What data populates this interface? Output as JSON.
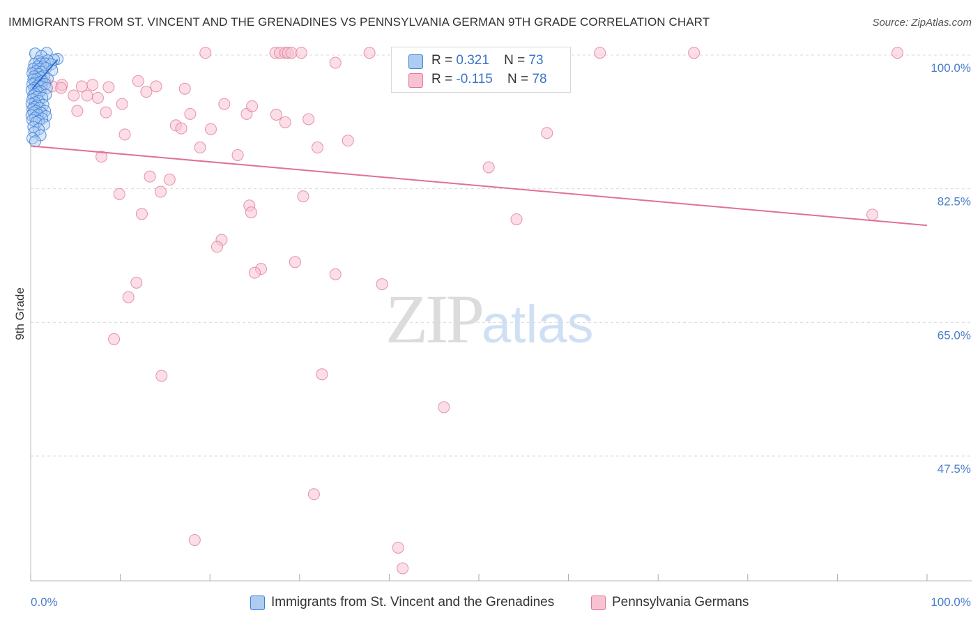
{
  "header": {
    "title": "IMMIGRANTS FROM ST. VINCENT AND THE GRENADINES VS PENNSYLVANIA GERMAN 9TH GRADE CORRELATION CHART",
    "source": "Source: ZipAtlas.com"
  },
  "watermark": {
    "zip": "ZIP",
    "atlas": "atlas"
  },
  "legend": {
    "r_label": "R =",
    "n_label": "N =",
    "series": [
      {
        "name": "Immigrants from St. Vincent and the Grenadines",
        "r": "0.321",
        "n": "73",
        "fill": "#aecbf2",
        "stroke": "#3d7fd6"
      },
      {
        "name": "Pennsylvania Germans",
        "r": "-0.115",
        "n": "78",
        "fill": "#f8c2d2",
        "stroke": "#e07898"
      }
    ]
  },
  "colors": {
    "blue_line": "#2f6fd0",
    "pink_line": "#e0709a",
    "tick_text": "#4a7fc8",
    "grid": "#d9d9d9"
  },
  "chart_data": {
    "type": "scatter",
    "title": "IMMIGRANTS FROM ST. VINCENT AND THE GRENADINES VS PENNSYLVANIA GERMAN 9TH GRADE CORRELATION CHART",
    "xlabel": "",
    "ylabel": "9th Grade",
    "x_tick_labels": [
      "0.0%",
      "100.0%"
    ],
    "y_tick_labels": [
      "100.0%",
      "82.5%",
      "65.0%",
      "47.5%"
    ],
    "y_ticks": [
      100.0,
      82.5,
      65.0,
      47.5
    ],
    "xlim": [
      0,
      100
    ],
    "ylim": [
      31.5,
      102.5
    ],
    "grid": true,
    "legend_position": "top-center",
    "series": [
      {
        "name": "Immigrants from St. Vincent and the Grenadines",
        "r": 0.321,
        "n": 73,
        "trend": {
          "x": [
            0.2,
            3.0
          ],
          "y": [
            95.6,
            99.4
          ]
        },
        "points": [
          [
            0.5,
            100.2
          ],
          [
            1.8,
            100.3
          ],
          [
            1.2,
            99.9
          ],
          [
            3.0,
            99.5
          ],
          [
            2.6,
            99.4
          ],
          [
            0.9,
            99.2
          ],
          [
            1.9,
            99.3
          ],
          [
            1.1,
            98.9
          ],
          [
            1.6,
            98.9
          ],
          [
            0.4,
            98.8
          ],
          [
            2.3,
            98.8
          ],
          [
            0.8,
            98.5
          ],
          [
            1.4,
            98.5
          ],
          [
            0.3,
            98.2
          ],
          [
            1.0,
            98.2
          ],
          [
            1.7,
            98.3
          ],
          [
            2.4,
            98.0
          ],
          [
            0.6,
            97.9
          ],
          [
            1.2,
            97.8
          ],
          [
            0.2,
            97.6
          ],
          [
            0.9,
            97.5
          ],
          [
            1.5,
            97.3
          ],
          [
            0.4,
            97.2
          ],
          [
            1.1,
            97.1
          ],
          [
            0.7,
            96.9
          ],
          [
            1.9,
            96.9
          ],
          [
            0.3,
            96.8
          ],
          [
            1.3,
            96.6
          ],
          [
            0.5,
            96.4
          ],
          [
            1.0,
            96.4
          ],
          [
            0.2,
            96.2
          ],
          [
            1.6,
            96.2
          ],
          [
            0.8,
            96.0
          ],
          [
            1.2,
            95.9
          ],
          [
            0.4,
            95.7
          ],
          [
            1.8,
            95.7
          ],
          [
            0.6,
            95.5
          ],
          [
            0.1,
            95.4
          ],
          [
            1.1,
            95.3
          ],
          [
            0.9,
            95.1
          ],
          [
            0.5,
            94.9
          ],
          [
            1.7,
            94.8
          ],
          [
            0.3,
            94.7
          ],
          [
            0.7,
            94.5
          ],
          [
            1.3,
            94.4
          ],
          [
            0.2,
            94.2
          ],
          [
            0.9,
            94.0
          ],
          [
            0.5,
            93.8
          ],
          [
            0.1,
            93.6
          ],
          [
            1.4,
            93.5
          ],
          [
            0.7,
            93.4
          ],
          [
            0.4,
            93.2
          ],
          [
            1.0,
            93.1
          ],
          [
            0.2,
            92.9
          ],
          [
            0.6,
            92.7
          ],
          [
            1.6,
            92.7
          ],
          [
            0.3,
            92.5
          ],
          [
            1.2,
            92.4
          ],
          [
            0.8,
            92.2
          ],
          [
            0.1,
            92.1
          ],
          [
            1.7,
            92.0
          ],
          [
            0.5,
            91.8
          ],
          [
            1.3,
            91.7
          ],
          [
            0.2,
            91.5
          ],
          [
            0.9,
            91.4
          ],
          [
            0.6,
            91.2
          ],
          [
            1.5,
            90.9
          ],
          [
            0.3,
            90.6
          ],
          [
            0.9,
            90.3
          ],
          [
            0.4,
            89.9
          ],
          [
            1.1,
            89.5
          ],
          [
            0.2,
            89.1
          ],
          [
            0.5,
            88.7
          ]
        ]
      },
      {
        "name": "Pennsylvania Germans",
        "r": -0.115,
        "n": 78,
        "trend": {
          "x": [
            0,
            100
          ],
          "y": [
            88.1,
            77.7
          ]
        },
        "points": [
          [
            19.5,
            100.3
          ],
          [
            27.3,
            100.3
          ],
          [
            27.8,
            100.3
          ],
          [
            28.4,
            100.3
          ],
          [
            28.7,
            100.3
          ],
          [
            29.1,
            100.3
          ],
          [
            30.2,
            100.3
          ],
          [
            37.8,
            100.3
          ],
          [
            48.1,
            100.3
          ],
          [
            58.0,
            100.3
          ],
          [
            63.5,
            100.3
          ],
          [
            74.0,
            100.3
          ],
          [
            96.7,
            100.3
          ],
          [
            34.0,
            99.0
          ],
          [
            1.0,
            96.8
          ],
          [
            1.6,
            96.6
          ],
          [
            12.0,
            96.6
          ],
          [
            1.3,
            96.3
          ],
          [
            3.5,
            96.1
          ],
          [
            6.9,
            96.1
          ],
          [
            2.4,
            95.9
          ],
          [
            5.7,
            95.9
          ],
          [
            14.0,
            95.9
          ],
          [
            8.7,
            95.8
          ],
          [
            3.4,
            95.7
          ],
          [
            17.2,
            95.6
          ],
          [
            12.9,
            95.2
          ],
          [
            4.8,
            94.7
          ],
          [
            6.3,
            94.7
          ],
          [
            7.5,
            94.4
          ],
          [
            21.6,
            93.6
          ],
          [
            10.2,
            93.6
          ],
          [
            5.2,
            92.7
          ],
          [
            8.4,
            92.5
          ],
          [
            17.8,
            92.3
          ],
          [
            24.1,
            92.3
          ],
          [
            24.7,
            93.3
          ],
          [
            27.4,
            92.2
          ],
          [
            31.0,
            91.6
          ],
          [
            28.4,
            91.2
          ],
          [
            16.2,
            90.8
          ],
          [
            16.8,
            90.4
          ],
          [
            20.1,
            90.3
          ],
          [
            10.5,
            89.6
          ],
          [
            35.4,
            88.8
          ],
          [
            18.9,
            87.9
          ],
          [
            32.0,
            87.9
          ],
          [
            23.1,
            86.9
          ],
          [
            7.9,
            86.7
          ],
          [
            13.3,
            84.1
          ],
          [
            15.5,
            83.7
          ],
          [
            14.5,
            82.1
          ],
          [
            9.9,
            81.8
          ],
          [
            30.4,
            81.5
          ],
          [
            24.4,
            80.3
          ],
          [
            24.6,
            79.4
          ],
          [
            12.4,
            79.2
          ],
          [
            93.9,
            79.1
          ],
          [
            54.2,
            78.5
          ],
          [
            21.3,
            75.8
          ],
          [
            20.8,
            74.9
          ],
          [
            29.5,
            72.9
          ],
          [
            25.7,
            72.0
          ],
          [
            25.0,
            71.5
          ],
          [
            34.0,
            71.3
          ],
          [
            39.2,
            70.0
          ],
          [
            11.8,
            70.2
          ],
          [
            10.9,
            68.3
          ],
          [
            9.3,
            62.8
          ],
          [
            14.6,
            58.0
          ],
          [
            32.5,
            58.2
          ],
          [
            46.1,
            53.9
          ],
          [
            31.6,
            42.5
          ],
          [
            18.3,
            36.5
          ],
          [
            41.0,
            35.5
          ],
          [
            41.5,
            32.8
          ],
          [
            51.1,
            85.3
          ],
          [
            57.6,
            89.8
          ]
        ]
      }
    ]
  }
}
